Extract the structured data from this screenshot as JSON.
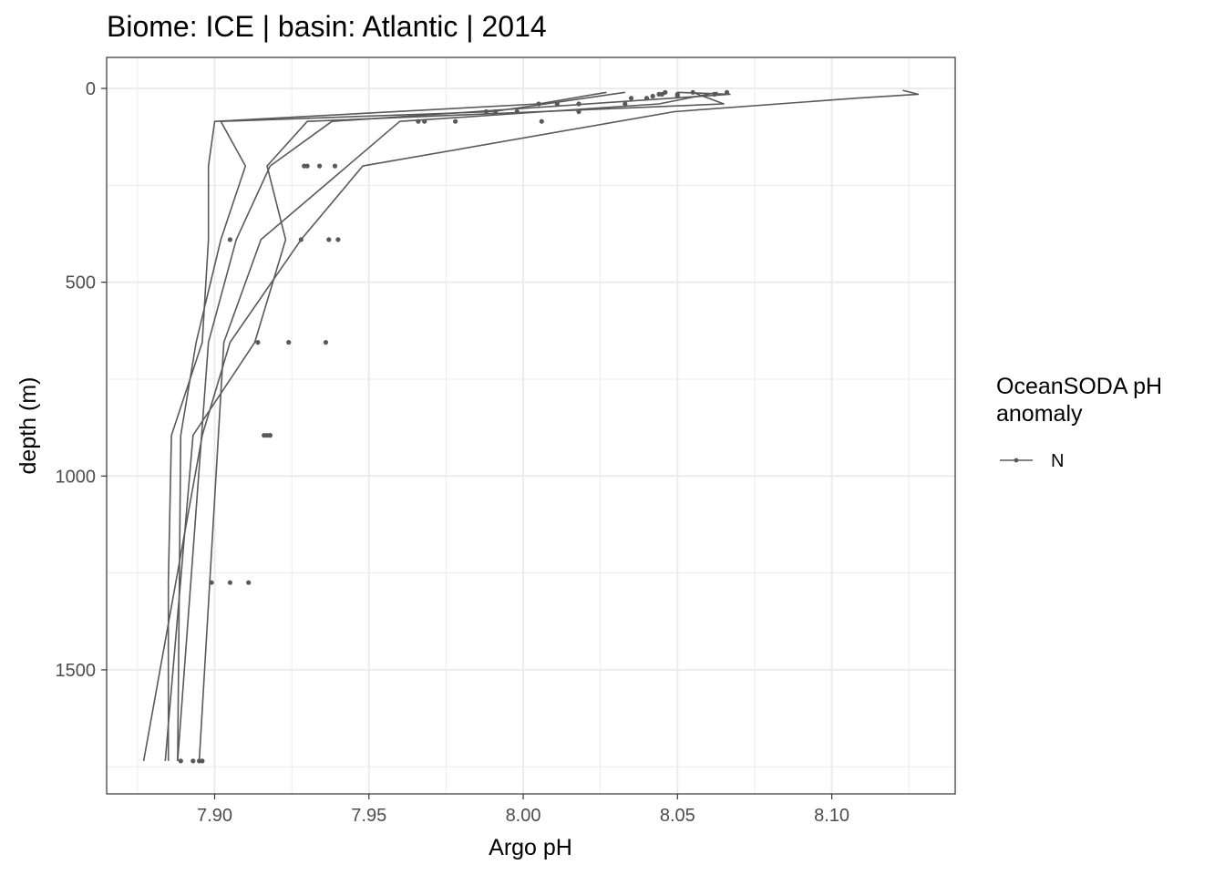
{
  "chart_data": {
    "type": "line",
    "title": "Biome: ICE | basin: Atlantic  |  2014",
    "xlabel": "Argo pH",
    "ylabel": "depth (m)",
    "xlim": [
      7.865,
      8.14
    ],
    "ylim": [
      -80,
      1820
    ],
    "y_reversed": true,
    "grid": true,
    "x_ticks": [
      7.9,
      7.95,
      8.0,
      8.05,
      8.1
    ],
    "x_tick_labels": [
      "7.90",
      "7.95",
      "8.00",
      "8.05",
      "8.10"
    ],
    "y_ticks": [
      0,
      500,
      1000,
      1500
    ],
    "y_tick_labels": [
      "0",
      "500",
      "1000",
      "1500"
    ],
    "legend": {
      "title": "OceanSODA pH\nanomaly",
      "position": "right",
      "entries": [
        "N"
      ]
    },
    "series_color": "#595959",
    "profiles": [
      {
        "x": [
          8.027,
          8.005,
          7.9,
          7.898,
          7.898,
          7.896,
          7.886,
          7.885,
          7.885
        ],
        "y": [
          10,
          40,
          85,
          200,
          390,
          655,
          895,
          1275,
          1735
        ]
      },
      {
        "x": [
          8.033,
          7.99,
          7.902,
          7.91,
          7.902,
          7.894,
          7.889,
          7.888
        ],
        "y": [
          10,
          60,
          85,
          200,
          390,
          655,
          895,
          1735
        ]
      },
      {
        "x": [
          8.055,
          8.065,
          7.93,
          7.917,
          7.923,
          7.913,
          7.893,
          7.884
        ],
        "y": [
          10,
          40,
          85,
          200,
          390,
          655,
          895,
          1735
        ]
      },
      {
        "x": [
          8.05,
          8.067,
          7.938,
          7.918,
          7.907,
          7.898,
          7.888
        ],
        "y": [
          10,
          15,
          85,
          200,
          390,
          655,
          1735
        ]
      },
      {
        "x": [
          8.123,
          8.128,
          8.108,
          8.049,
          7.948,
          7.928,
          7.905,
          7.896,
          7.877
        ],
        "y": [
          5,
          15,
          25,
          60,
          200,
          390,
          655,
          895,
          1735
        ]
      },
      {
        "x": [
          8.063,
          8.044,
          7.96,
          7.915,
          7.903,
          7.895
        ],
        "y": [
          10,
          40,
          85,
          390,
          655,
          1735
        ]
      }
    ],
    "points": [
      {
        "x": 8.066,
        "y": 10
      },
      {
        "x": 8.055,
        "y": 10
      },
      {
        "x": 8.046,
        "y": 10
      },
      {
        "x": 8.045,
        "y": 15
      },
      {
        "x": 8.044,
        "y": 15
      },
      {
        "x": 8.042,
        "y": 20
      },
      {
        "x": 8.04,
        "y": 25
      },
      {
        "x": 8.035,
        "y": 25
      },
      {
        "x": 8.062,
        "y": 15
      },
      {
        "x": 8.05,
        "y": 20
      },
      {
        "x": 8.033,
        "y": 40
      },
      {
        "x": 8.011,
        "y": 40
      },
      {
        "x": 8.005,
        "y": 40
      },
      {
        "x": 8.018,
        "y": 40
      },
      {
        "x": 8.05,
        "y": 15
      },
      {
        "x": 8.018,
        "y": 60
      },
      {
        "x": 7.998,
        "y": 60
      },
      {
        "x": 7.991,
        "y": 60
      },
      {
        "x": 7.988,
        "y": 60
      },
      {
        "x": 7.966,
        "y": 85
      },
      {
        "x": 7.968,
        "y": 85
      },
      {
        "x": 7.978,
        "y": 85
      },
      {
        "x": 8.006,
        "y": 85
      },
      {
        "x": 7.929,
        "y": 200
      },
      {
        "x": 7.93,
        "y": 200
      },
      {
        "x": 7.934,
        "y": 200
      },
      {
        "x": 7.939,
        "y": 200
      },
      {
        "x": 7.905,
        "y": 390
      },
      {
        "x": 7.928,
        "y": 390
      },
      {
        "x": 7.937,
        "y": 390
      },
      {
        "x": 7.94,
        "y": 390
      },
      {
        "x": 7.914,
        "y": 655
      },
      {
        "x": 7.924,
        "y": 655
      },
      {
        "x": 7.936,
        "y": 655
      },
      {
        "x": 7.916,
        "y": 895
      },
      {
        "x": 7.917,
        "y": 895
      },
      {
        "x": 7.918,
        "y": 895
      },
      {
        "x": 7.899,
        "y": 1275
      },
      {
        "x": 7.905,
        "y": 1275
      },
      {
        "x": 7.911,
        "y": 1275
      },
      {
        "x": 7.889,
        "y": 1735
      },
      {
        "x": 7.893,
        "y": 1735
      },
      {
        "x": 7.895,
        "y": 1735
      },
      {
        "x": 7.896,
        "y": 1735
      }
    ]
  }
}
